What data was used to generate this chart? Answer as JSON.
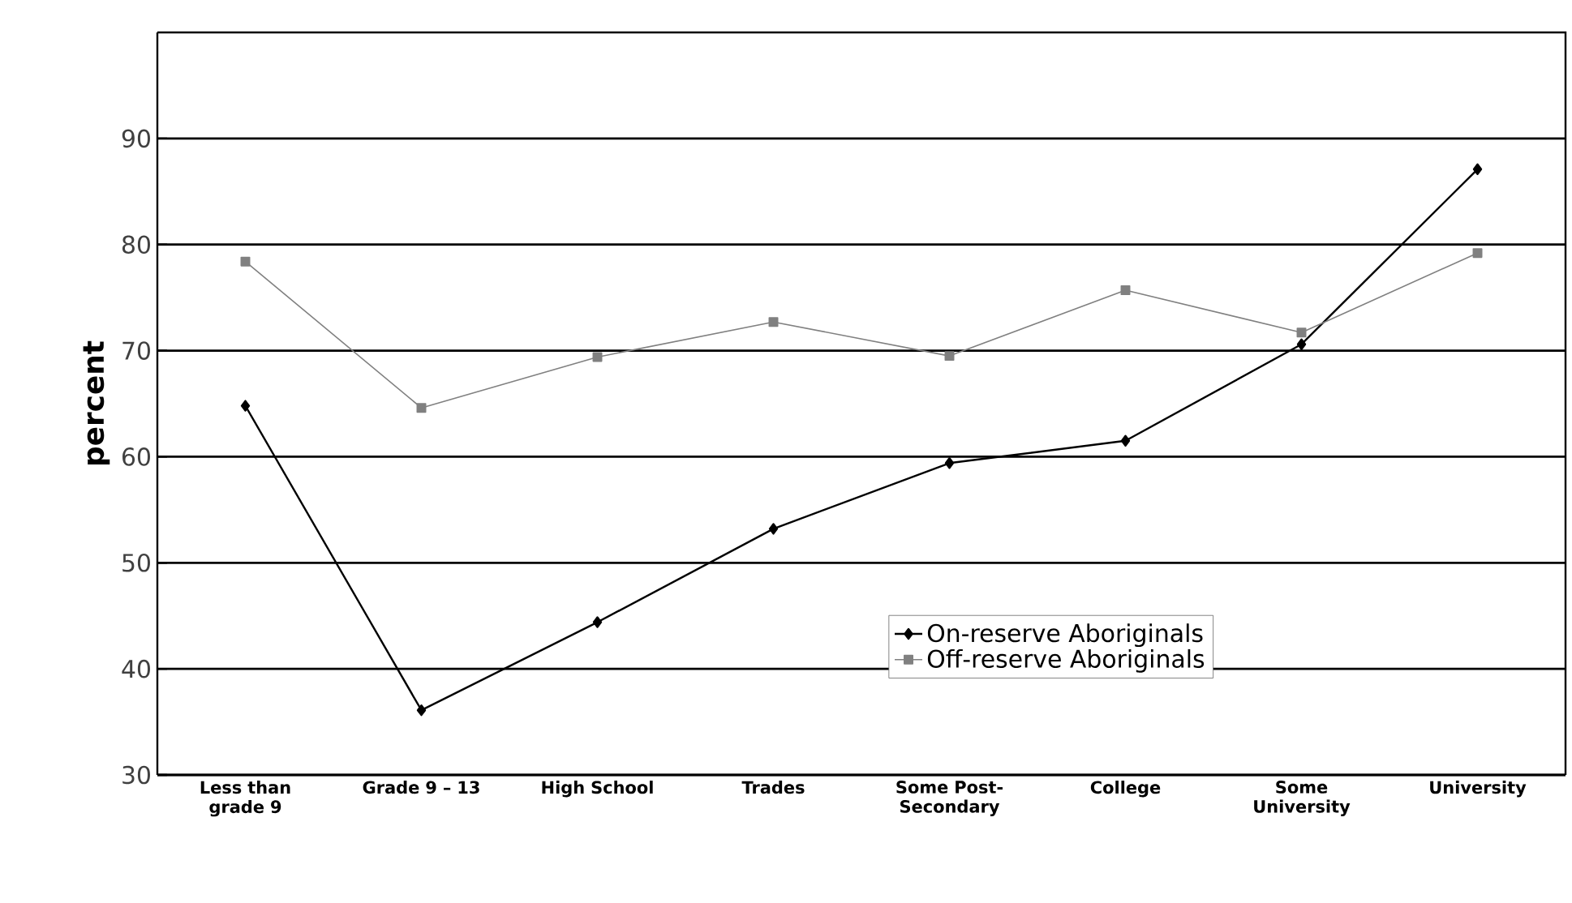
{
  "chart_data": {
    "type": "line",
    "ylabel": "percent",
    "categories": [
      "Less than grade 9",
      "Grade 9 – 13",
      "High School",
      "Trades",
      "Some Post-Secondary",
      "College",
      "Some University",
      "University"
    ],
    "series": [
      {
        "name": "On-reserve Aboriginals",
        "color": "#000000",
        "marker": "diamond",
        "values": [
          64.8,
          36.1,
          44.4,
          53.2,
          59.4,
          61.5,
          70.6,
          87.1
        ]
      },
      {
        "name": "Off-reserve Aboriginals",
        "color": "#808080",
        "marker": "square",
        "values": [
          78.4,
          64.6,
          69.4,
          72.7,
          69.5,
          75.7,
          71.7,
          79.2
        ]
      }
    ],
    "ylim": [
      30,
      100
    ],
    "yticks": [
      30,
      40,
      50,
      60,
      70,
      80,
      90
    ],
    "grid": "y",
    "legend": "bottom right",
    "line_style": "solid"
  }
}
